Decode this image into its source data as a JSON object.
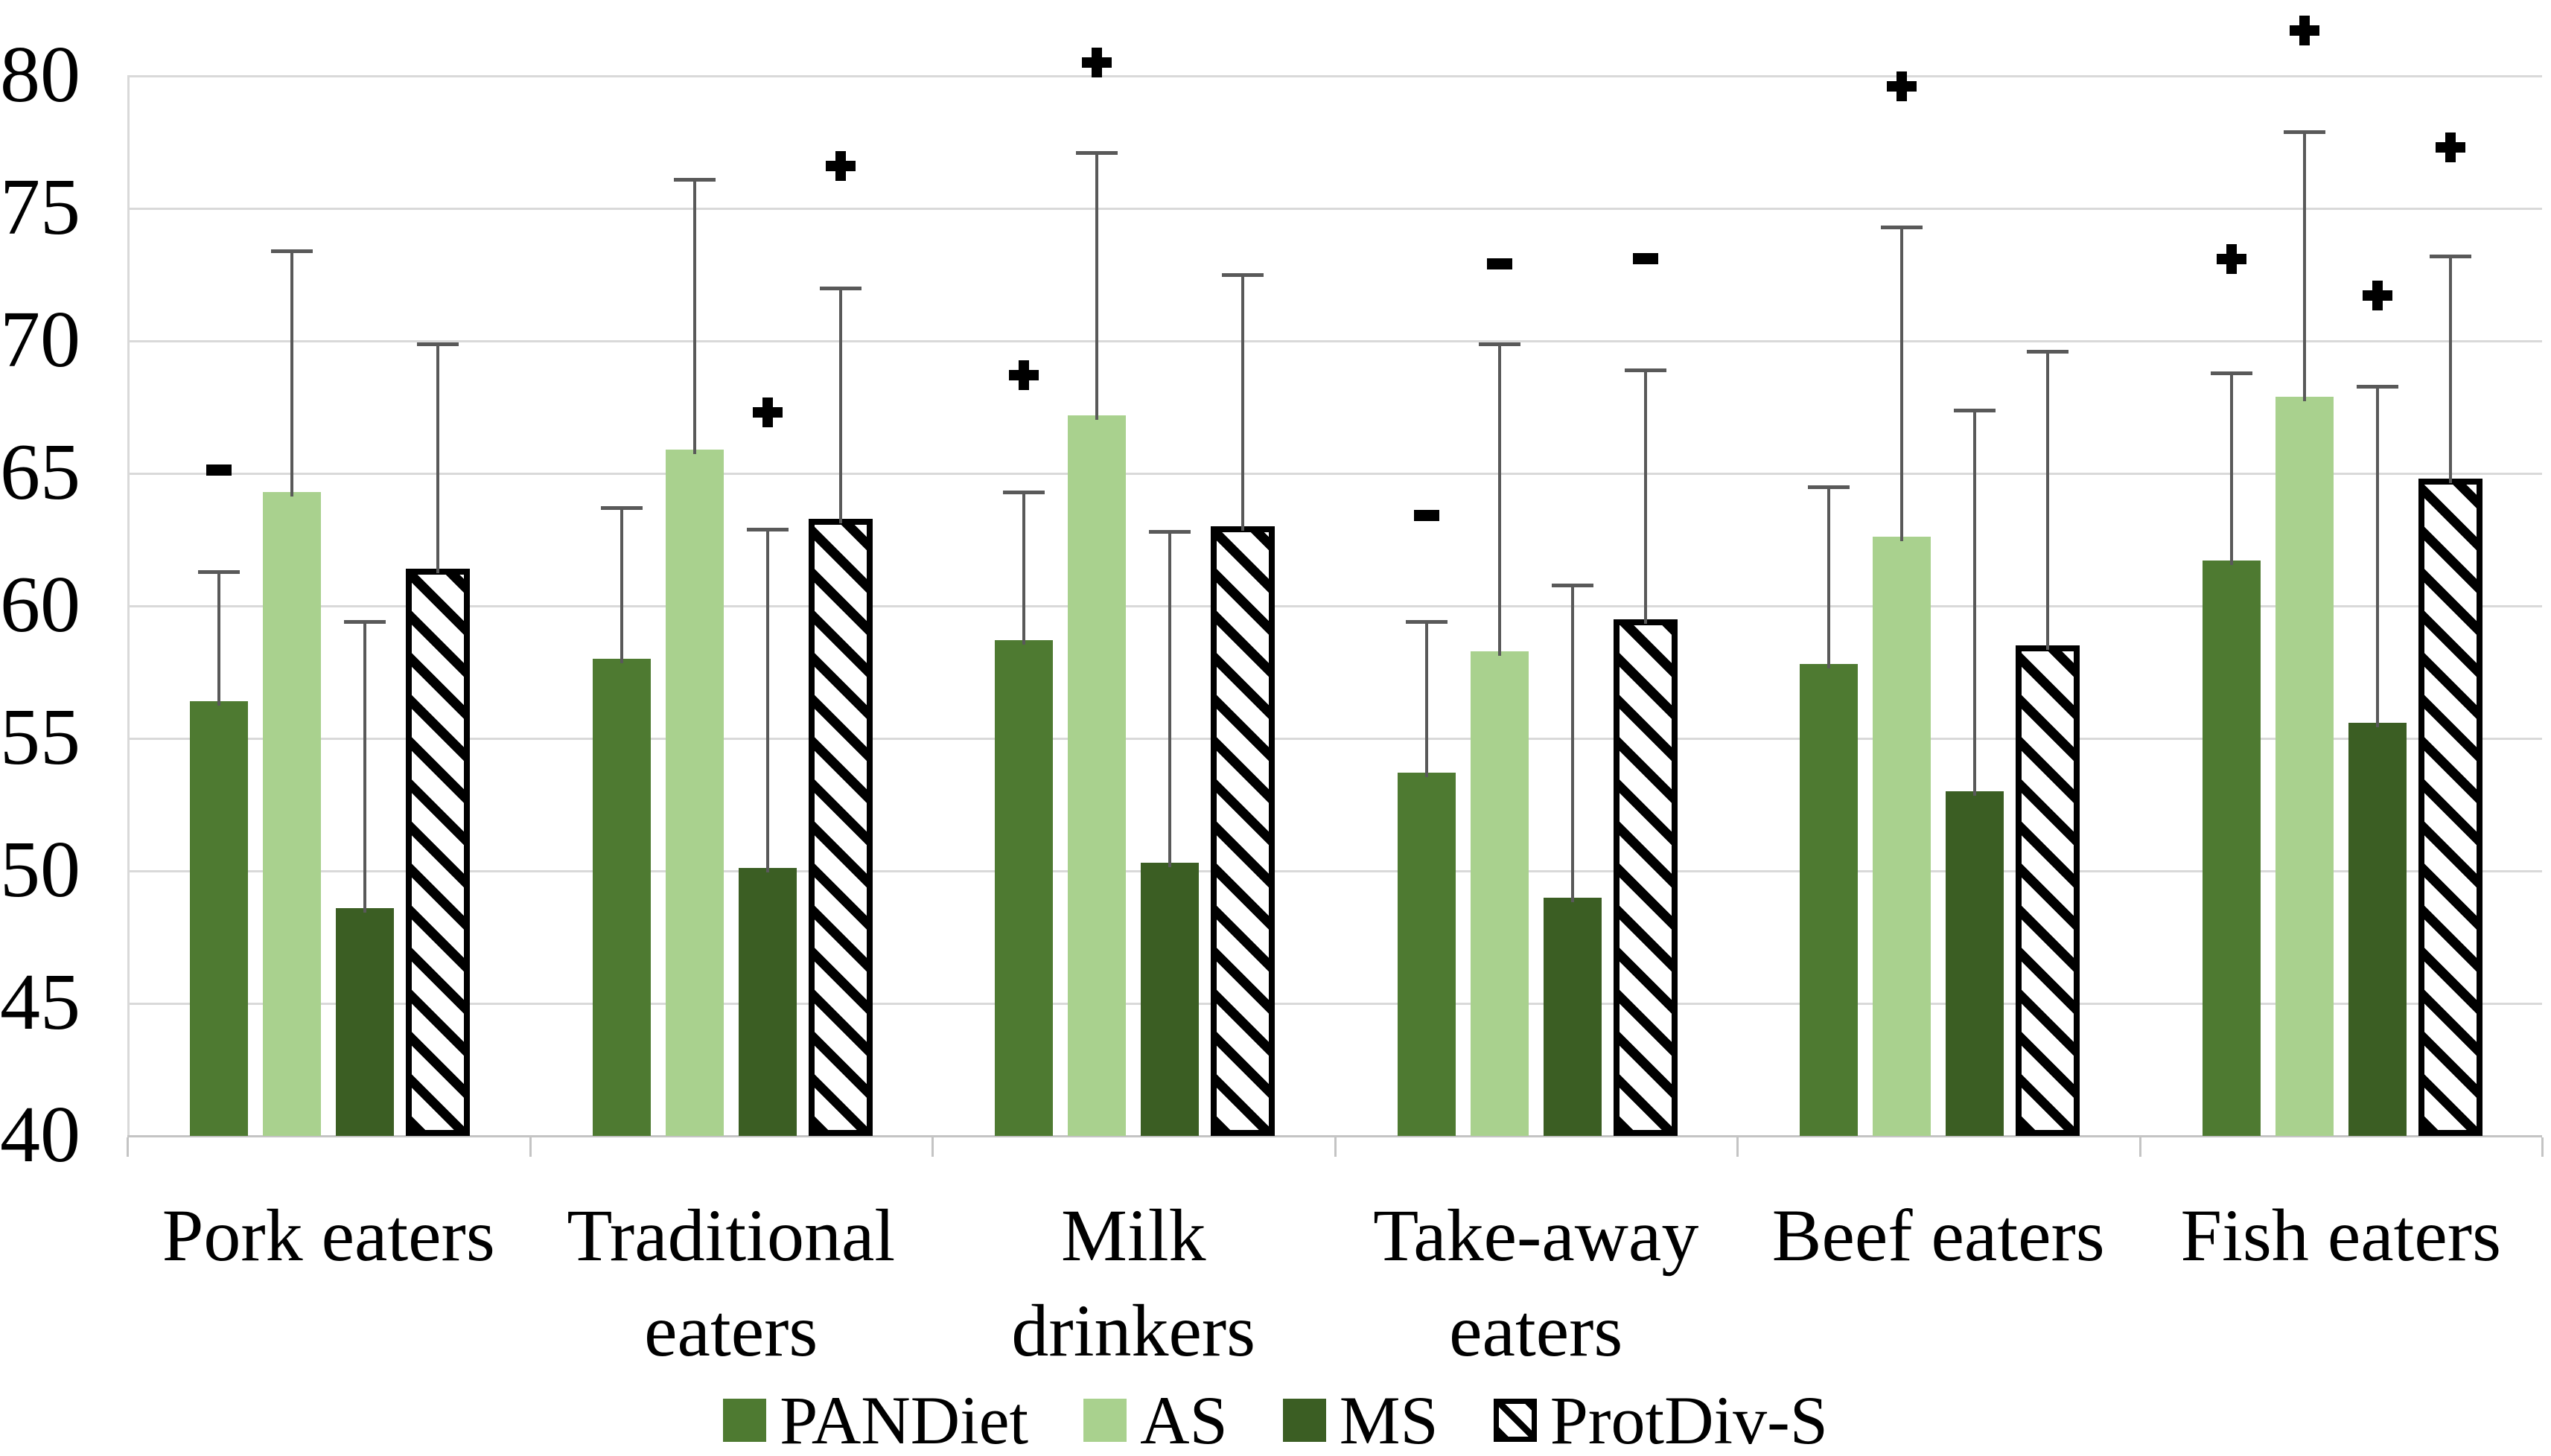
{
  "chart_data": {
    "type": "bar",
    "title": "",
    "xlabel": "",
    "ylabel": "",
    "grid": true,
    "legend_position": "bottom",
    "y_axis": {
      "min": 40,
      "max": 80,
      "step": 5,
      "ticks": [
        40,
        45,
        50,
        55,
        60,
        65,
        70,
        75,
        80
      ]
    },
    "categories": [
      "Pork eaters",
      "Traditional eaters",
      "Milk drinkers",
      "Take-away eaters",
      "Beef eaters",
      "Fish eaters"
    ],
    "category_label_lines": [
      [
        "Pork eaters"
      ],
      [
        "Traditional",
        "eaters"
      ],
      [
        "Milk drinkers"
      ],
      [
        "Take-away",
        "eaters"
      ],
      [
        "Beef eaters"
      ],
      [
        "Fish eaters"
      ]
    ],
    "series": [
      {
        "name": "PANDiet",
        "style": "solid",
        "color": "#4e7a31",
        "values": [
          56.4,
          58.0,
          58.7,
          53.7,
          57.8,
          61.7
        ],
        "error_top": [
          61.3,
          63.7,
          64.3,
          59.4,
          64.5,
          68.8
        ]
      },
      {
        "name": "AS",
        "style": "solid",
        "color": "#a9d18e",
        "values": [
          64.3,
          65.9,
          67.2,
          58.3,
          62.6,
          67.9
        ],
        "error_top": [
          73.4,
          76.1,
          77.1,
          69.9,
          74.3,
          77.9
        ]
      },
      {
        "name": "MS",
        "style": "solid",
        "color": "#3b5e23",
        "values": [
          48.6,
          50.1,
          50.3,
          49.0,
          53.0,
          55.6
        ],
        "error_top": [
          59.4,
          62.9,
          62.8,
          60.8,
          67.4,
          68.3
        ]
      },
      {
        "name": "ProtDiv-S",
        "style": "hatched",
        "color": "#000000",
        "values": [
          61.4,
          63.3,
          63.0,
          59.5,
          58.5,
          64.8
        ],
        "error_top": [
          69.9,
          72.0,
          72.5,
          68.9,
          69.6,
          73.2
        ]
      }
    ],
    "significance_markers": [
      {
        "group": 0,
        "series": 0,
        "symbol": "-",
        "value": 65.1
      },
      {
        "group": 1,
        "series": 2,
        "symbol": "+",
        "value": 67.3
      },
      {
        "group": 1,
        "series": 3,
        "symbol": "+",
        "value": 76.6
      },
      {
        "group": 2,
        "series": 0,
        "symbol": "+",
        "value": 68.7
      },
      {
        "group": 2,
        "series": 1,
        "symbol": "+",
        "value": 80.5
      },
      {
        "group": 3,
        "series": 0,
        "symbol": "-",
        "value": 63.4
      },
      {
        "group": 3,
        "series": 1,
        "symbol": "-",
        "value": 72.9
      },
      {
        "group": 3,
        "series": 3,
        "symbol": "-",
        "value": 73.1
      },
      {
        "group": 4,
        "series": 1,
        "symbol": "+",
        "value": 79.6
      },
      {
        "group": 5,
        "series": 0,
        "symbol": "+",
        "value": 73.1
      },
      {
        "group": 5,
        "series": 1,
        "symbol": "+",
        "value": 81.7
      },
      {
        "group": 5,
        "series": 2,
        "symbol": "+",
        "value": 71.7
      },
      {
        "group": 5,
        "series": 3,
        "symbol": "+",
        "value": 77.3
      }
    ],
    "colors": {
      "gridline": "#d9d9d9",
      "axis": "#c4c4c4",
      "error_bar": "#595959",
      "text": "#000000",
      "background": "#ffffff"
    }
  }
}
